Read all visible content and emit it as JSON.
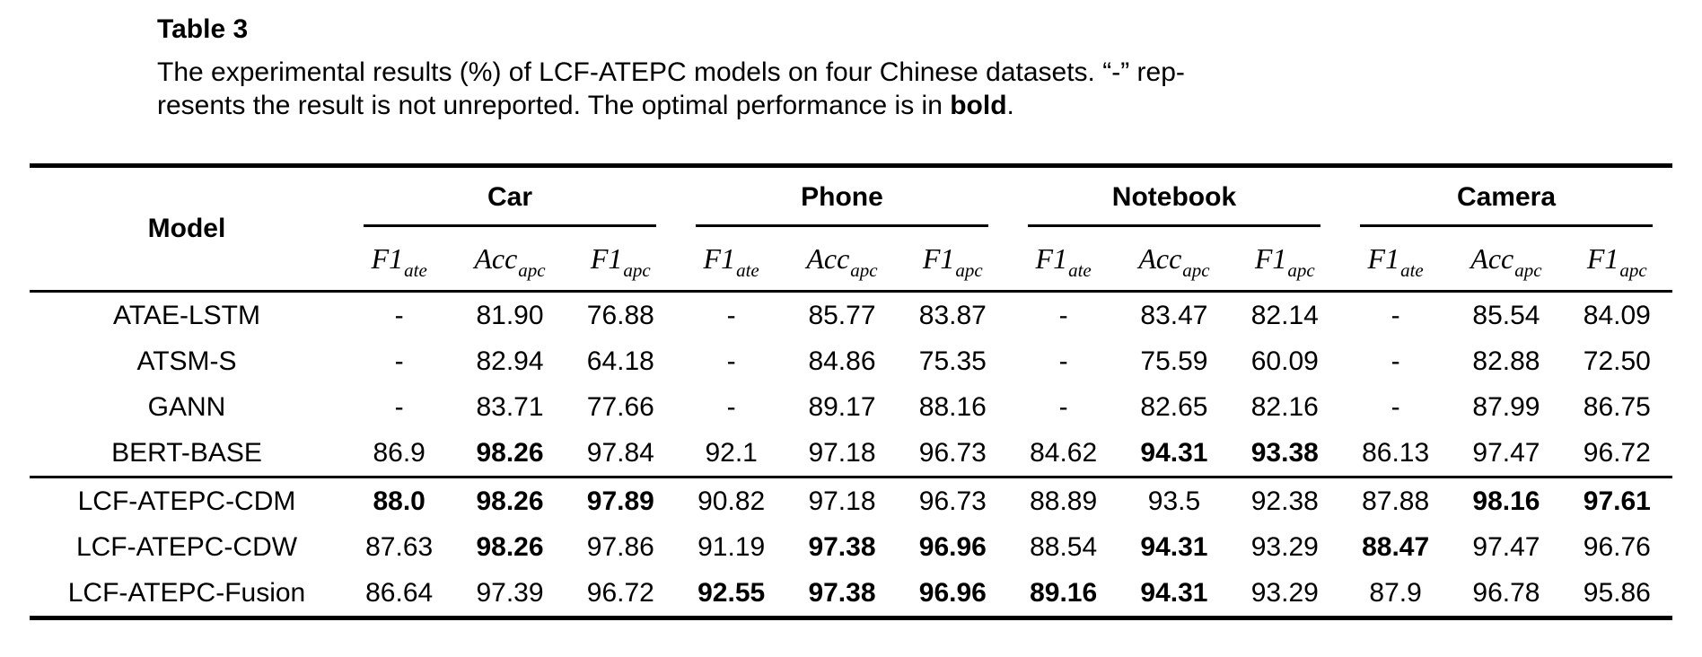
{
  "colors": {
    "background": "#ffffff",
    "text": "#000000"
  },
  "caption": {
    "label": "Table 3",
    "line1": "The experimental results (%) of LCF-ATEPC models on four Chinese datasets. “-” rep-",
    "line2_prefix": "resents the result is not unreported. The optimal performance is in ",
    "line2_bold": "bold",
    "line2_suffix": "."
  },
  "table": {
    "model_header": "Model",
    "groups": [
      {
        "label": "Car",
        "metrics": [
          {
            "base": "F1",
            "sub": "ate"
          },
          {
            "base": "Acc",
            "sub": "apc"
          },
          {
            "base": "F1",
            "sub": "apc"
          }
        ]
      },
      {
        "label": "Phone",
        "metrics": [
          {
            "base": "F1",
            "sub": "ate"
          },
          {
            "base": "Acc",
            "sub": "apc"
          },
          {
            "base": "F1",
            "sub": "apc"
          }
        ]
      },
      {
        "label": "Notebook",
        "metrics": [
          {
            "base": "F1",
            "sub": "ate"
          },
          {
            "base": "Acc",
            "sub": "apc"
          },
          {
            "base": "F1",
            "sub": "apc"
          }
        ]
      },
      {
        "label": "Camera",
        "metrics": [
          {
            "base": "F1",
            "sub": "ate"
          },
          {
            "base": "Acc",
            "sub": "apc"
          },
          {
            "base": "F1",
            "sub": "apc"
          }
        ]
      }
    ],
    "separator_after_row_index": 3,
    "rows": [
      {
        "model": "ATAE-LSTM",
        "values": [
          "-",
          "81.90",
          "76.88",
          "-",
          "85.77",
          "83.87",
          "-",
          "83.47",
          "82.14",
          "-",
          "85.54",
          "84.09"
        ],
        "bold": []
      },
      {
        "model": "ATSM-S",
        "values": [
          "-",
          "82.94",
          "64.18",
          "-",
          "84.86",
          "75.35",
          "-",
          "75.59",
          "60.09",
          "-",
          "82.88",
          "72.50"
        ],
        "bold": []
      },
      {
        "model": "GANN",
        "values": [
          "-",
          "83.71",
          "77.66",
          "-",
          "89.17",
          "88.16",
          "-",
          "82.65",
          "82.16",
          "-",
          "87.99",
          "86.75"
        ],
        "bold": []
      },
      {
        "model": "BERT-BASE",
        "values": [
          "86.9",
          "98.26",
          "97.84",
          "92.1",
          "97.18",
          "96.73",
          "84.62",
          "94.31",
          "93.38",
          "86.13",
          "97.47",
          "96.72"
        ],
        "bold": [
          1,
          7,
          8
        ]
      },
      {
        "model": "LCF-ATEPC-CDM",
        "values": [
          "88.0",
          "98.26",
          "97.89",
          "90.82",
          "97.18",
          "96.73",
          "88.89",
          "93.5",
          "92.38",
          "87.88",
          "98.16",
          "97.61"
        ],
        "bold": [
          0,
          1,
          2,
          10,
          11
        ]
      },
      {
        "model": "LCF-ATEPC-CDW",
        "values": [
          "87.63",
          "98.26",
          "97.86",
          "91.19",
          "97.38",
          "96.96",
          "88.54",
          "94.31",
          "93.29",
          "88.47",
          "97.47",
          "96.76"
        ],
        "bold": [
          1,
          4,
          5,
          7,
          9
        ]
      },
      {
        "model": "LCF-ATEPC-Fusion",
        "values": [
          "86.64",
          "97.39",
          "96.72",
          "92.55",
          "97.38",
          "96.96",
          "89.16",
          "94.31",
          "93.29",
          "87.9",
          "96.78",
          "95.86"
        ],
        "bold": [
          3,
          4,
          5,
          6,
          7
        ]
      }
    ]
  }
}
